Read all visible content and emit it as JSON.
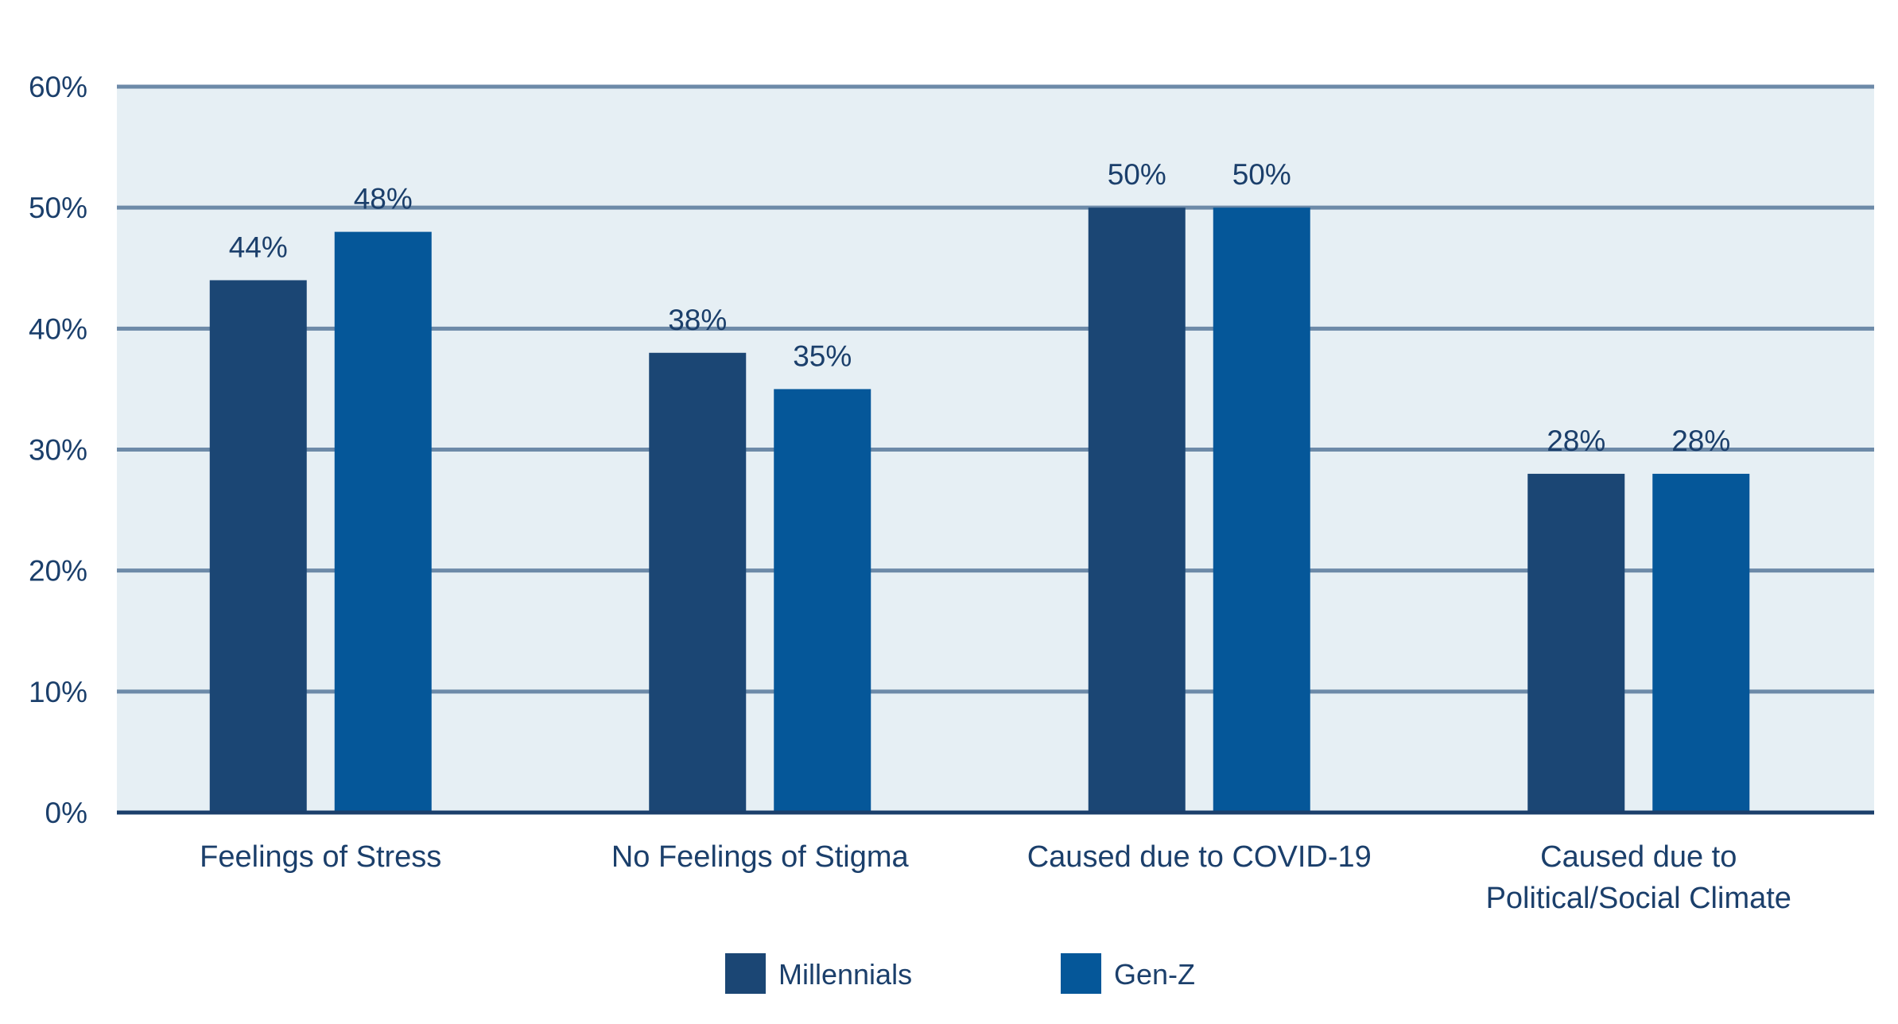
{
  "chart_data": {
    "type": "bar",
    "categories": [
      [
        "Feelings of Stress"
      ],
      [
        "No Feelings of Stigma"
      ],
      [
        "Caused due to COVID-19"
      ],
      [
        "Caused due to",
        "Political/Social Climate"
      ]
    ],
    "series": [
      {
        "name": "Millennials",
        "values": [
          44,
          38,
          50,
          28
        ],
        "labels": [
          "44%",
          "38%",
          "50%",
          "28%"
        ],
        "color": "#1b4674"
      },
      {
        "name": "Gen-Z",
        "values": [
          48,
          35,
          50,
          28
        ],
        "labels": [
          "48%",
          "35%",
          "50%",
          "28%"
        ],
        "color": "#055799"
      }
    ],
    "yticks": [
      0,
      10,
      20,
      30,
      40,
      50,
      60
    ],
    "ytick_labels": [
      "0%",
      "10%",
      "20%",
      "30%",
      "40%",
      "50%",
      "60%"
    ],
    "ylim": [
      0,
      60
    ],
    "grid": true,
    "legend_position": "bottom-center",
    "colors": {
      "plot_background": "#e6eff4",
      "gridline": "#6d8aa8",
      "axis_line": "#1b3f6b",
      "text": "#1b3f6b"
    }
  }
}
